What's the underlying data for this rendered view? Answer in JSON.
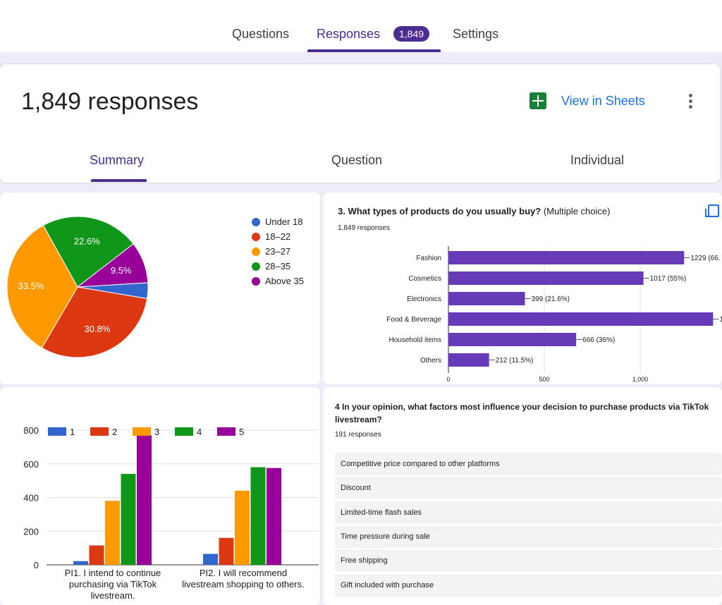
{
  "top_tabs": {
    "questions": "Questions",
    "responses": "Responses",
    "responses_count": "1,849",
    "settings": "Settings"
  },
  "header": {
    "title": "1,849 responses",
    "view_in_sheets": "View in Sheets",
    "sheets_icon": "google-sheets-icon",
    "more_icon": "more-vert-icon"
  },
  "sub_tabs": {
    "summary": "Summary",
    "question": "Question",
    "individual": "Individual"
  },
  "pie_card": {
    "legend": [
      "Under 18",
      "18–22",
      "23–27",
      "28–35",
      "Above 35"
    ]
  },
  "q3": {
    "title_bold": "3. What types of products do you usually buy?",
    "title_suffix": " (Multiple choice)",
    "responses": "1,849 responses",
    "copy_icon": "copy-icon"
  },
  "q4": {
    "title": "4  In your opinion, what factors most influence your decision to purchase products via TikTok livestream?",
    "responses": "191 responses",
    "answers": [
      "Competitive price compared to other platforms",
      "Discount",
      "Limited-time flash sales",
      "Time pressure during sale",
      "Free shipping",
      "Gift included with purchase"
    ]
  },
  "chart_data": [
    {
      "type": "pie",
      "categories": [
        "Under 18",
        "18–22",
        "23–27",
        "28–35",
        "Above 35"
      ],
      "values": [
        3.6,
        30.8,
        33.5,
        22.6,
        9.5
      ],
      "slice_labels": [
        "",
        "30.8%",
        "33.5%",
        "22.6%",
        "9.5%"
      ],
      "colors": [
        "#3366cc",
        "#dc3912",
        "#ff9900",
        "#109618",
        "#990099"
      ],
      "legend": "right"
    },
    {
      "type": "bar",
      "orientation": "horizontal",
      "categories": [
        "Fashion",
        "Cosmetics",
        "Electronics",
        "Food & Beverage",
        "Household items",
        "Others"
      ],
      "values": [
        1229,
        1017,
        399,
        1380,
        666,
        212
      ],
      "data_labels": [
        "1229 (66.",
        "1017 (55%)",
        "399 (21.6%)",
        "1",
        "666 (36%)",
        "212 (11.5%)"
      ],
      "x_ticks": [
        "0",
        "500",
        "1,000"
      ],
      "xlim": [
        0,
        1400
      ],
      "color": "#673ab7",
      "grid": true
    },
    {
      "type": "bar",
      "categories": [
        "PI1. I intend to continue purchasing via TikTok livestream.",
        "PI2. I will recommend livestream shopping to others."
      ],
      "category_lines": [
        [
          "PI1. I intend to continue",
          "purchasing via TikTok",
          "livestream."
        ],
        [
          "PI2. I will recommend",
          "livestream shopping to others."
        ]
      ],
      "series": [
        {
          "name": "1",
          "values": [
            22,
            65
          ],
          "color": "#3366cc"
        },
        {
          "name": "2",
          "values": [
            115,
            160
          ],
          "color": "#dc3912"
        },
        {
          "name": "3",
          "values": [
            380,
            440
          ],
          "color": "#ff9900"
        },
        {
          "name": "4",
          "values": [
            540,
            580
          ],
          "color": "#109618"
        },
        {
          "name": "5",
          "values": [
            770,
            575
          ],
          "color": "#990099"
        }
      ],
      "y_ticks": [
        "0",
        "200",
        "400",
        "600",
        "800"
      ],
      "ylim": [
        0,
        800
      ],
      "grid": true,
      "legend": "top"
    }
  ]
}
